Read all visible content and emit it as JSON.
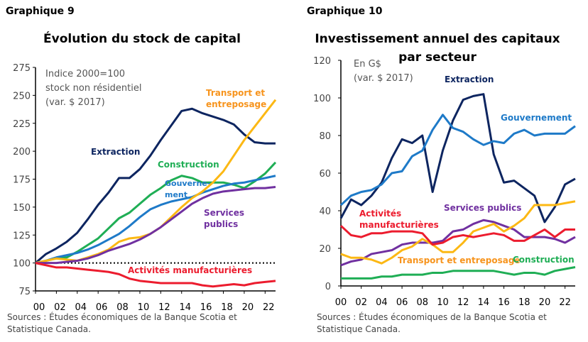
{
  "chart_data": [
    {
      "type": "line",
      "label": "Graphique 9",
      "title": "Évolution du stock de capital",
      "note": [
        "Indice 2000=100",
        "stock non résidentiel",
        "(var. $ 2017)"
      ],
      "x": [
        2000,
        2001,
        2002,
        2003,
        2004,
        2005,
        2006,
        2007,
        2008,
        2009,
        2010,
        2011,
        2012,
        2013,
        2014,
        2015,
        2016,
        2017,
        2018,
        2019,
        2020,
        2021,
        2022,
        2023
      ],
      "xticks": [
        "00",
        "02",
        "04",
        "06",
        "08",
        "10",
        "12",
        "14",
        "16",
        "18",
        "20",
        "22"
      ],
      "yticks": [
        "75",
        "100",
        "125",
        "150",
        "175",
        "200",
        "225",
        "250",
        "275"
      ],
      "ylim": [
        75,
        275
      ],
      "reference_line": 100,
      "series": [
        {
          "name": "Extraction",
          "color": "#0d2560",
          "values": [
            100,
            108,
            113,
            119,
            127,
            139,
            152,
            163,
            176,
            176,
            184,
            196,
            210,
            223,
            236,
            238,
            234,
            231,
            228,
            224,
            215,
            208,
            207,
            207
          ]
        },
        {
          "name": "Construction",
          "color": "#1fae55",
          "values": [
            100,
            102,
            104,
            105,
            110,
            116,
            122,
            131,
            140,
            145,
            153,
            161,
            167,
            174,
            178,
            176,
            172,
            172,
            172,
            170,
            167,
            173,
            180,
            190
          ]
        },
        {
          "name": "Gouverne-ment",
          "color": "#1e7ac8",
          "values": [
            100,
            102,
            105,
            107,
            109,
            112,
            116,
            121,
            126,
            133,
            141,
            148,
            152,
            155,
            157,
            159,
            163,
            166,
            169,
            171,
            172,
            174,
            176,
            178
          ]
        },
        {
          "name": "Transport et entreposage",
          "color": "#fcb814",
          "label_color": "#f7941d",
          "values": [
            100,
            102,
            104,
            103,
            102,
            105,
            108,
            112,
            119,
            122,
            123,
            126,
            132,
            141,
            150,
            158,
            164,
            172,
            182,
            196,
            210,
            222,
            234,
            246
          ]
        },
        {
          "name": "Services publics",
          "color": "#7030a0",
          "values": [
            100,
            100,
            100,
            101,
            102,
            104,
            107,
            111,
            114,
            117,
            121,
            126,
            132,
            139,
            146,
            153,
            158,
            162,
            164,
            165,
            166,
            167,
            167,
            168
          ]
        },
        {
          "name": "Activités manufacturières",
          "color": "#ec1c2e",
          "values": [
            100,
            98,
            96,
            96,
            95,
            94,
            93,
            92,
            90,
            86,
            84,
            83,
            82,
            82,
            82,
            82,
            80,
            79,
            80,
            81,
            80,
            82,
            83,
            84
          ]
        }
      ],
      "source": [
        "Sources : Études économiques de la Banque Scotia et",
        "Statistique Canada."
      ]
    },
    {
      "type": "line",
      "label": "Graphique 10",
      "title": [
        "Investissement annuel des capitaux",
        "par secteur"
      ],
      "note": [
        "En G$",
        "(var. $ 2017)"
      ],
      "x": [
        2000,
        2001,
        2002,
        2003,
        2004,
        2005,
        2006,
        2007,
        2008,
        2009,
        2010,
        2011,
        2012,
        2013,
        2014,
        2015,
        2016,
        2017,
        2018,
        2019,
        2020,
        2021,
        2022,
        2023
      ],
      "xticks": [
        "00",
        "02",
        "04",
        "06",
        "08",
        "10",
        "12",
        "14",
        "16",
        "18",
        "20",
        "22"
      ],
      "yticks": [
        "0",
        "20",
        "40",
        "60",
        "80",
        "100",
        "120"
      ],
      "ylim": [
        0,
        120
      ],
      "series": [
        {
          "name": "Extraction",
          "color": "#0d2560",
          "values": [
            36,
            46,
            43,
            48,
            55,
            68,
            78,
            76,
            80,
            50,
            72,
            88,
            99,
            101,
            102,
            70,
            55,
            56,
            52,
            48,
            34,
            42,
            54,
            57
          ]
        },
        {
          "name": "Gouvernement",
          "color": "#1e7ac8",
          "values": [
            43,
            48,
            50,
            51,
            54,
            60,
            61,
            69,
            72,
            83,
            91,
            84,
            82,
            78,
            75,
            77,
            76,
            81,
            83,
            80,
            81,
            81,
            81,
            85
          ]
        },
        {
          "name": "Services publics",
          "color": "#7030a0",
          "values": [
            11,
            13,
            14,
            17,
            18,
            19,
            22,
            23,
            23,
            23,
            24,
            29,
            30,
            33,
            35,
            34,
            32,
            30,
            26,
            26,
            26,
            25,
            23,
            26
          ]
        },
        {
          "name": "Transport et entreposage",
          "color": "#fcb814",
          "label_color": "#f7941d",
          "values": [
            17,
            15,
            15,
            14,
            12,
            15,
            19,
            21,
            25,
            22,
            18,
            18,
            23,
            29,
            31,
            33,
            29,
            32,
            36,
            43,
            43,
            43,
            44,
            45
          ]
        },
        {
          "name": "Activités manufacturières",
          "color": "#ec1c2e",
          "values": [
            32,
            27,
            26,
            28,
            28,
            29,
            29,
            29,
            28,
            22,
            23,
            26,
            27,
            26,
            27,
            28,
            27,
            24,
            24,
            27,
            30,
            26,
            30,
            30
          ]
        },
        {
          "name": "Construction",
          "color": "#1fae55",
          "values": [
            4,
            4,
            4,
            4,
            5,
            5,
            6,
            6,
            6,
            7,
            7,
            8,
            8,
            8,
            8,
            8,
            7,
            6,
            7,
            7,
            6,
            8,
            9,
            10
          ]
        }
      ],
      "source": [
        "Sources : Études économiques de la Banque Scotia et",
        "Statistique Canada."
      ]
    }
  ]
}
